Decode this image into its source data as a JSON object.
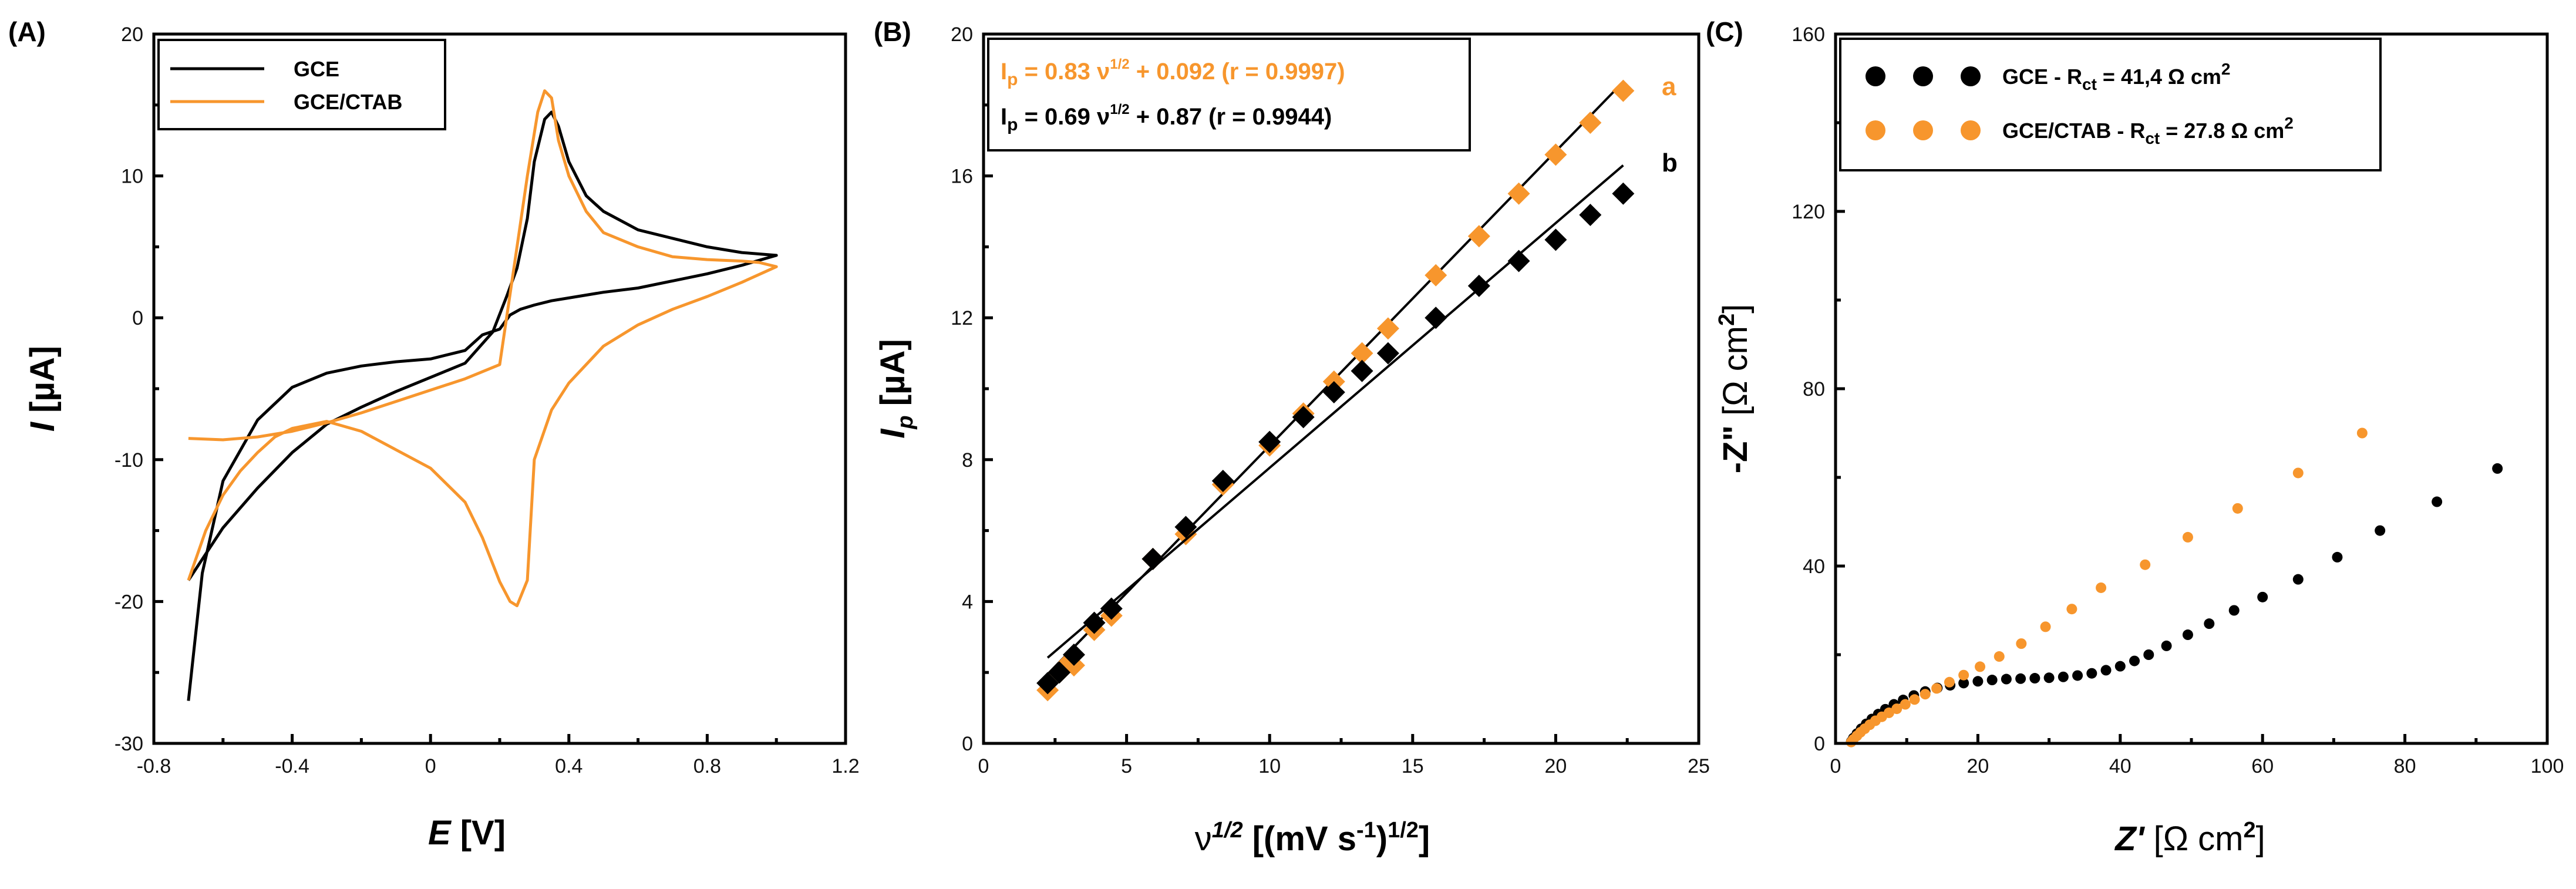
{
  "colors": {
    "black": "#000000",
    "orange": "#F7962D"
  },
  "chart_data": [
    {
      "panel": "(A)",
      "type": "line",
      "xlabel": "E [V]",
      "xlabel_main": "E",
      "xlabel_unit": " [V]",
      "ylabel": "I [µA]",
      "ylabel_main": "I",
      "ylabel_unit": " [µA]",
      "xlim": [
        -0.8,
        1.2
      ],
      "ylim": [
        -30,
        20
      ],
      "xticks": [
        "-0.8",
        "-0.4",
        "0",
        "0.4",
        "0.8",
        "1.2"
      ],
      "yticks": [
        "-30",
        "-20",
        "-10",
        "0",
        "10",
        "20"
      ],
      "legend": [
        "GCE",
        "GCE/CTAB"
      ],
      "series": [
        {
          "name": "GCE",
          "color": "#000000",
          "x": [
            -0.7,
            -0.66,
            -0.6,
            -0.5,
            -0.4,
            -0.3,
            -0.2,
            -0.1,
            0.0,
            0.1,
            0.15,
            0.2,
            0.23,
            0.26,
            0.3,
            0.35,
            0.4,
            0.5,
            0.6,
            0.7,
            0.8,
            0.9,
            1.0,
            0.95,
            0.9,
            0.8,
            0.7,
            0.6,
            0.5,
            0.45,
            0.4,
            0.37,
            0.35,
            0.33,
            0.3,
            0.28,
            0.25,
            0.22,
            0.18,
            0.1,
            0.0,
            -0.1,
            -0.2,
            -0.3,
            -0.4,
            -0.5,
            -0.6,
            -0.7
          ],
          "y": [
            -27,
            -18,
            -11.5,
            -7.2,
            -4.9,
            -3.9,
            -3.4,
            -3.1,
            -2.9,
            -2.3,
            -1.2,
            -0.8,
            0.2,
            0.6,
            0.9,
            1.2,
            1.4,
            1.8,
            2.1,
            2.6,
            3.1,
            3.7,
            4.4,
            4.5,
            4.6,
            5,
            5.6,
            6.2,
            7.5,
            8.6,
            11,
            13.5,
            14.5,
            14,
            11,
            7,
            3.5,
            1.5,
            -1,
            -3.2,
            -4.2,
            -5.2,
            -6.3,
            -7.5,
            -9.5,
            -12,
            -14.8,
            -18.5
          ]
        },
        {
          "name": "GCE/CTAB",
          "color": "#F7962D",
          "x": [
            -0.7,
            -0.65,
            -0.6,
            -0.55,
            -0.5,
            -0.45,
            -0.4,
            -0.3,
            -0.2,
            -0.1,
            0.0,
            0.1,
            0.15,
            0.2,
            0.23,
            0.25,
            0.28,
            0.3,
            0.35,
            0.4,
            0.5,
            0.6,
            0.7,
            0.8,
            0.9,
            1.0,
            0.95,
            0.9,
            0.8,
            0.7,
            0.6,
            0.5,
            0.45,
            0.4,
            0.37,
            0.35,
            0.33,
            0.31,
            0.28,
            0.25,
            0.2,
            0.1,
            0.0,
            -0.1,
            -0.2,
            -0.3,
            -0.4,
            -0.5,
            -0.6,
            -0.7
          ],
          "y": [
            -18.5,
            -15,
            -12.5,
            -10.8,
            -9.5,
            -8.4,
            -7.8,
            -7.3,
            -8,
            -9.3,
            -10.6,
            -13,
            -15.5,
            -18.6,
            -20,
            -20.3,
            -18.5,
            -10,
            -6.5,
            -4.6,
            -2,
            -0.5,
            0.6,
            1.5,
            2.5,
            3.6,
            3.9,
            4,
            4.1,
            4.3,
            5,
            6,
            7.5,
            10,
            12.5,
            15.5,
            16,
            14.5,
            10,
            5,
            -3.3,
            -4.3,
            -5.1,
            -5.9,
            -6.7,
            -7.4,
            -8,
            -8.4,
            -8.6,
            -8.5
          ]
        }
      ]
    },
    {
      "panel": "(B)",
      "type": "scatter",
      "xlabel": "ν1/2 [(mV s-1)1/2]",
      "xlabel_main": "ν",
      "xlabel_sup": "1/2",
      "xlabel_unit_a": " [(mV s",
      "xlabel_unit_sup1": "-1",
      "xlabel_unit_b": ")",
      "xlabel_unit_sup2": "1/2",
      "xlabel_unit_c": "]",
      "ylabel": "Ip [µA]",
      "ylabel_main": "I",
      "ylabel_sub": "p",
      "ylabel_unit": " [µA]",
      "xlim": [
        0,
        25
      ],
      "ylim": [
        0,
        20
      ],
      "xticks": [
        "0",
        "5",
        "10",
        "15",
        "20",
        "25"
      ],
      "yticks": [
        "0",
        "4",
        "8",
        "12",
        "16",
        "20"
      ],
      "equations": [
        {
          "color": "#F7962D",
          "lead": "I",
          "sub": "p",
          "mid": " = 0.83 ν",
          "sup": "1/2",
          "tail": " + 0.092 (r = 0.9997)"
        },
        {
          "color": "#000000",
          "lead": "I",
          "sub": "p",
          "mid": " = 0.69 ν",
          "sup": "1/2",
          "tail": " + 0.87 (r = 0.9944)"
        }
      ],
      "series": [
        {
          "name": "a",
          "color": "#F7962D",
          "x": [
            2.24,
            2.65,
            3.0,
            3.16,
            3.87,
            4.47,
            5.92,
            7.07,
            8.37,
            10.0,
            11.18,
            12.25,
            13.23,
            14.14,
            15.81,
            17.32,
            18.71,
            20.0,
            21.21,
            22.36
          ],
          "y": [
            1.5,
            2.0,
            2.3,
            2.2,
            3.2,
            3.6,
            5.2,
            5.9,
            7.3,
            8.4,
            9.3,
            10.2,
            11.0,
            11.7,
            13.2,
            14.3,
            15.5,
            16.6,
            17.5,
            18.4
          ],
          "fit": {
            "slope": 0.83,
            "intercept": 0.092,
            "x_range": [
              2.24,
              22.36
            ]
          }
        },
        {
          "name": "b",
          "color": "#000000",
          "x": [
            2.24,
            2.65,
            3.16,
            3.87,
            4.47,
            5.92,
            7.07,
            8.37,
            10.0,
            11.18,
            12.25,
            13.23,
            14.14,
            15.81,
            17.32,
            18.71,
            20.0,
            21.21,
            22.36
          ],
          "y": [
            1.7,
            2.0,
            2.5,
            3.4,
            3.8,
            5.2,
            6.1,
            7.4,
            8.5,
            9.2,
            9.9,
            10.5,
            11.0,
            12.0,
            12.9,
            13.6,
            14.2,
            14.9,
            15.5
          ],
          "fit": {
            "slope": 0.69,
            "intercept": 0.87,
            "x_range": [
              2.24,
              22.36
            ]
          }
        }
      ]
    },
    {
      "panel": "(C)",
      "type": "scatter",
      "xlabel": "Z' [Ω cm2]",
      "xlabel_main": "Z'",
      "xlabel_unit": " [Ω cm",
      "xlabel_sup": "2",
      "xlabel_end": "]",
      "ylabel": "-Z\" [Ω cm2]",
      "ylabel_main": "-Z\"",
      "ylabel_unit": " [Ω cm",
      "ylabel_sup": "2",
      "ylabel_end": "]",
      "xlim": [
        0,
        100
      ],
      "ylim": [
        0,
        160
      ],
      "xticks": [
        "0",
        "20",
        "40",
        "60",
        "80",
        "100"
      ],
      "yticks": [
        "0",
        "40",
        "80",
        "120",
        "160"
      ],
      "legend": [
        {
          "lead": "GCE - R",
          "sub": "ct",
          "mid": " = 41,4 Ω cm",
          "sup": "2"
        },
        {
          "lead": "GCE/CTAB - R",
          "sub": "ct",
          "mid": " = 27.8 Ω cm",
          "sup": "2"
        }
      ],
      "series": [
        {
          "name": "GCE",
          "color": "#000000",
          "x": [
            2.2,
            2.5,
            3,
            3.6,
            4.3,
            5.1,
            6,
            7,
            8.2,
            9.5,
            11,
            12.6,
            14.3,
            16.1,
            18,
            20,
            22,
            24,
            26,
            28,
            30,
            32,
            34,
            36,
            38,
            40,
            42,
            44,
            46.5,
            49.5,
            52.5,
            56,
            60,
            65,
            70.5,
            76.5,
            84.5,
            93
          ],
          "y": [
            0.4,
            1.2,
            2.2,
            3.3,
            4.4,
            5.5,
            6.6,
            7.7,
            8.8,
            9.8,
            10.8,
            11.7,
            12.5,
            13.1,
            13.6,
            14,
            14.3,
            14.5,
            14.6,
            14.7,
            14.8,
            15,
            15.3,
            15.8,
            16.5,
            17.4,
            18.6,
            20,
            22,
            24.5,
            27,
            30,
            33,
            37,
            42,
            48,
            54.5,
            62
          ]
        },
        {
          "name": "GCE/CTAB",
          "color": "#F7962D",
          "x": [
            2.2,
            2.5,
            3,
            3.5,
            4.1,
            4.8,
            5.6,
            6.5,
            7.5,
            8.6,
            9.8,
            11.1,
            12.6,
            14.2,
            16,
            18,
            20.3,
            23,
            26.1,
            29.5,
            33.2,
            37.3,
            43.5,
            49.5,
            56.5,
            65,
            74
          ],
          "y": [
            0.3,
            0.9,
            1.7,
            2.5,
            3.3,
            4.2,
            5.1,
            6,
            6.9,
            7.8,
            8.8,
            9.9,
            11.1,
            12.4,
            13.8,
            15.4,
            17.3,
            19.6,
            22.5,
            26.3,
            30.3,
            35.1,
            40.3,
            46.5,
            53,
            61,
            70
          ]
        }
      ]
    }
  ]
}
